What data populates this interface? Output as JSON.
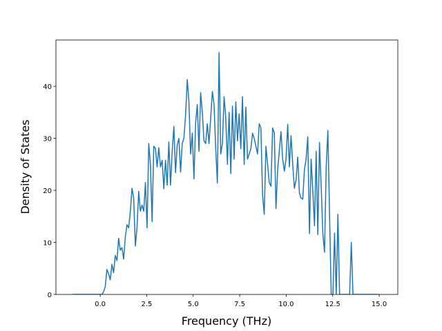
{
  "chart_data": {
    "type": "line",
    "xlabel": "Frequency (THz)",
    "ylabel": "Density of States",
    "xlim": [
      -2.38,
      16.0
    ],
    "ylim": [
      0,
      48.9
    ],
    "xticks": [
      {
        "value": 0,
        "label": "0.0"
      },
      2.5,
      {
        "value": 5,
        "label": "5.0"
      },
      7.5,
      {
        "value": 10,
        "label": "10.0"
      },
      12.5,
      {
        "value": 15,
        "label": "15.0"
      }
    ],
    "yticks": [
      0,
      10,
      20,
      30,
      40
    ],
    "series": [
      {
        "color": "#1f77b4",
        "x": [
          -1.5,
          0,
          0.09,
          0.18,
          0.27,
          0.36,
          0.45,
          0.54,
          0.63,
          0.72,
          0.81,
          0.9,
          0.99,
          1.08,
          1.17,
          1.26,
          1.35,
          1.44,
          1.53,
          1.62,
          1.71,
          1.8,
          1.89,
          1.98,
          2.07,
          2.16,
          2.25,
          2.34,
          2.43,
          2.52,
          2.61,
          2.7,
          2.79,
          2.88,
          2.97,
          3.06,
          3.15,
          3.24,
          3.33,
          3.42,
          3.51,
          3.6,
          3.69,
          3.78,
          3.87,
          3.96,
          4.05,
          4.14,
          4.23,
          4.32,
          4.41,
          4.5,
          4.59,
          4.68,
          4.77,
          4.86,
          4.95,
          5.04,
          5.13,
          5.22,
          5.31,
          5.4,
          5.49,
          5.58,
          5.67,
          5.76,
          5.85,
          5.94,
          6.03,
          6.12,
          6.21,
          6.3,
          6.39,
          6.48,
          6.57,
          6.66,
          6.75,
          6.84,
          6.93,
          7.02,
          7.11,
          7.2,
          7.29,
          7.38,
          7.47,
          7.56,
          7.65,
          7.74,
          7.83,
          7.92,
          8.01,
          8.1,
          8.19,
          8.28,
          8.37,
          8.46,
          8.55,
          8.64,
          8.73,
          8.82,
          8.91,
          9,
          9.09,
          9.18,
          9.27,
          9.36,
          9.45,
          9.54,
          9.63,
          9.72,
          9.81,
          9.9,
          9.99,
          10.08,
          10.17,
          10.26,
          10.35,
          10.44,
          10.53,
          10.62,
          10.71,
          10.8,
          10.89,
          10.98,
          11.07,
          11.16,
          11.25,
          11.34,
          11.43,
          11.52,
          11.61,
          11.7,
          11.79,
          11.88,
          11.97,
          12.06,
          12.15,
          12.24,
          12.33,
          12.42,
          12.51,
          12.6,
          12.69,
          12.78,
          12.87,
          12.96,
          13.05,
          13.14,
          13.23,
          13.32,
          13.41,
          13.5,
          13.59,
          15.0
        ],
        "values": [
          0,
          0,
          0,
          0.5,
          1.5,
          4.8,
          4,
          2.8,
          5.8,
          4.2,
          7.5,
          6.5,
          10.8,
          8.5,
          9,
          6.8,
          11,
          13.4,
          12.8,
          16,
          20.4,
          18.5,
          9.3,
          13,
          19.8,
          16,
          17.2,
          16,
          21.5,
          12.8,
          29,
          25,
          14,
          28.5,
          28,
          24.5,
          28.2,
          24.5,
          25.8,
          20.3,
          25.8,
          21,
          29.3,
          21,
          27.5,
          32.3,
          23.4,
          28.7,
          30,
          23.5,
          29,
          30,
          34.5,
          41.3,
          37,
          27,
          31,
          22.2,
          33,
          36.5,
          27.5,
          38.8,
          35,
          29.5,
          29,
          32.8,
          29,
          34,
          39,
          36.5,
          28,
          21.4,
          46.5,
          27,
          29,
          38,
          34,
          25,
          35,
          23.2,
          36.2,
          26,
          37,
          29.5,
          34.7,
          28,
          38,
          25,
          36,
          26,
          27,
          28,
          31,
          30,
          28.5,
          27,
          32.8,
          32,
          19,
          15.4,
          28.5,
          25,
          21.5,
          20.8,
          32,
          31,
          16.5,
          24,
          27.6,
          31.3,
          26,
          23.7,
          26,
          32.7,
          24.5,
          30.5,
          25,
          20.4,
          22,
          26.4,
          19.5,
          18.5,
          18.3,
          24,
          26,
          30.3,
          11.7,
          26,
          20,
          13.2,
          27.5,
          11.5,
          29.2,
          20.8,
          11.7,
          8.1,
          24.5,
          31.5,
          15.5,
          0,
          0,
          11.8,
          0,
          15.4,
          0,
          0,
          0,
          0,
          0,
          0,
          0,
          10,
          0,
          0
        ]
      }
    ]
  }
}
